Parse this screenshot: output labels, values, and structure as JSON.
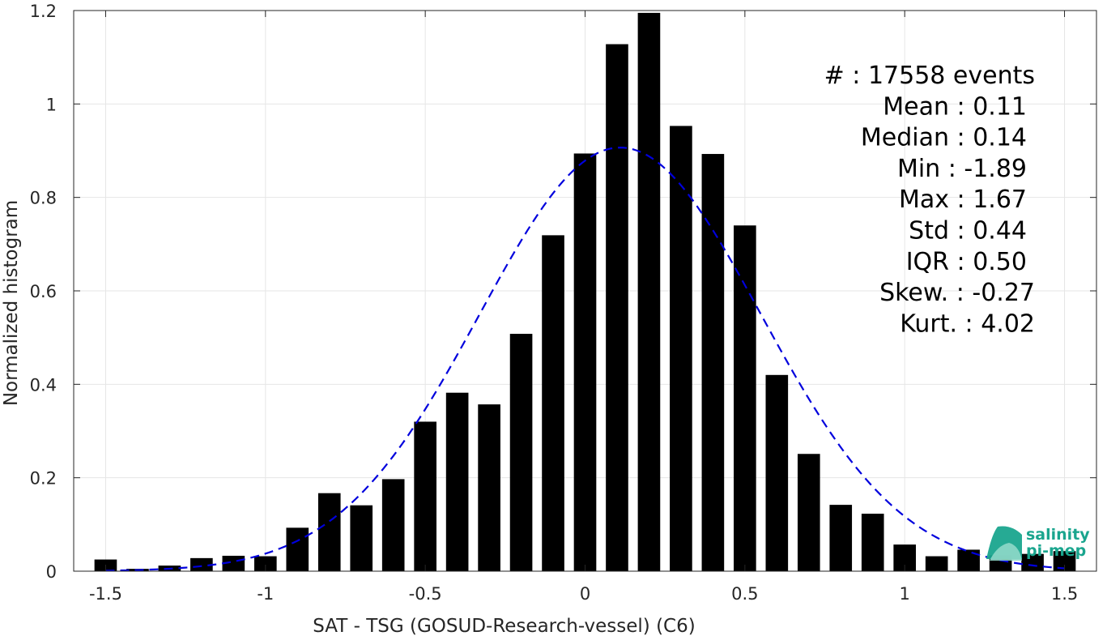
{
  "chart_data": {
    "type": "bar",
    "xlabel": "SAT - TSG (GOSUD-Research-vessel) (C6)",
    "ylabel": "Normalized histogram",
    "xlim": [
      -1.6,
      1.6
    ],
    "ylim": [
      0,
      1.2
    ],
    "xticks": [
      -1.5,
      -1,
      -0.5,
      0,
      0.5,
      1,
      1.5
    ],
    "xtick_labels": [
      "-1.5",
      "-1",
      "-0.5",
      "0",
      "0.5",
      "1",
      "1.5"
    ],
    "yticks": [
      0,
      0.2,
      0.4,
      0.6,
      0.8,
      1,
      1.2
    ],
    "ytick_labels": [
      "0",
      "0.2",
      "0.4",
      "0.6",
      "0.8",
      "1",
      "1.2"
    ],
    "grid": true,
    "bar_color": "#000000",
    "bins": [
      {
        "x": -1.5,
        "y": 0.025
      },
      {
        "x": -1.4,
        "y": 0.005
      },
      {
        "x": -1.3,
        "y": 0.012
      },
      {
        "x": -1.2,
        "y": 0.028
      },
      {
        "x": -1.1,
        "y": 0.033
      },
      {
        "x": -1.0,
        "y": 0.032
      },
      {
        "x": -0.9,
        "y": 0.093
      },
      {
        "x": -0.8,
        "y": 0.167
      },
      {
        "x": -0.7,
        "y": 0.141
      },
      {
        "x": -0.6,
        "y": 0.197
      },
      {
        "x": -0.5,
        "y": 0.32
      },
      {
        "x": -0.4,
        "y": 0.382
      },
      {
        "x": -0.3,
        "y": 0.357
      },
      {
        "x": -0.2,
        "y": 0.508
      },
      {
        "x": -0.1,
        "y": 0.719
      },
      {
        "x": 0.0,
        "y": 0.894
      },
      {
        "x": 0.1,
        "y": 1.128
      },
      {
        "x": 0.2,
        "y": 1.195
      },
      {
        "x": 0.3,
        "y": 0.953
      },
      {
        "x": 0.4,
        "y": 0.893
      },
      {
        "x": 0.5,
        "y": 0.74
      },
      {
        "x": 0.6,
        "y": 0.42
      },
      {
        "x": 0.7,
        "y": 0.251
      },
      {
        "x": 0.8,
        "y": 0.142
      },
      {
        "x": 0.9,
        "y": 0.123
      },
      {
        "x": 1.0,
        "y": 0.057
      },
      {
        "x": 1.1,
        "y": 0.032
      },
      {
        "x": 1.2,
        "y": 0.046
      },
      {
        "x": 1.3,
        "y": 0.034
      },
      {
        "x": 1.4,
        "y": 0.037
      },
      {
        "x": 1.5,
        "y": 0.043
      }
    ],
    "fit": {
      "type": "gaussian",
      "mean": 0.11,
      "std": 0.44,
      "line_style": "dashed",
      "color": "#0000dd"
    },
    "annotations": [
      "#  : 17558 events",
      "Mean : 0.11",
      "Median : 0.14",
      "Min : -1.89",
      "Max : 1.67",
      "Std : 0.44",
      "IQR : 0.50",
      "Skew. : -0.27",
      "Kurt. : 4.02"
    ]
  },
  "logo": {
    "line1": "salinity",
    "line2": "pi-mep",
    "color": "#1aa58e"
  }
}
